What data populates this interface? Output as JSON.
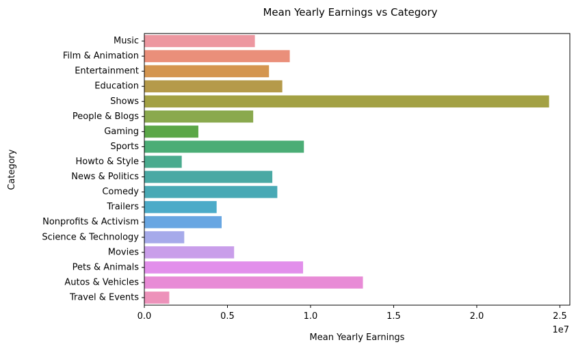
{
  "chart_data": {
    "type": "bar",
    "orientation": "horizontal",
    "title": "Mean Yearly Earnings vs Category",
    "xlabel": "Mean Yearly Earnings",
    "ylabel": "Category",
    "x_offset_text": "1e7",
    "xlim": [
      0,
      25600000
    ],
    "x_ticks": [
      {
        "value": 0,
        "label": "0.0"
      },
      {
        "value": 5000000,
        "label": "0.5"
      },
      {
        "value": 10000000,
        "label": "1.0"
      },
      {
        "value": 15000000,
        "label": "1.5"
      },
      {
        "value": 20000000,
        "label": "2.0"
      },
      {
        "value": 25000000,
        "label": "2.5"
      }
    ],
    "grid": false,
    "legend": "none",
    "categories": [
      "Music",
      "Film & Animation",
      "Entertainment",
      "Education",
      "Shows",
      "People & Blogs",
      "Gaming",
      "Sports",
      "Howto & Style",
      "News & Politics",
      "Comedy",
      "Trailers",
      "Nonprofits & Activism",
      "Science & Technology",
      "Movies",
      "Pets & Animals",
      "Autos & Vehicles",
      "Travel & Events"
    ],
    "values": [
      6650000,
      8750000,
      7500000,
      8300000,
      24350000,
      6550000,
      3250000,
      9600000,
      2250000,
      7700000,
      8000000,
      4350000,
      4650000,
      2400000,
      5400000,
      9550000,
      13150000,
      1500000
    ],
    "colors": [
      "#ed97a0",
      "#ea8f7a",
      "#d4954f",
      "#b59a4a",
      "#a3a144",
      "#8aa94e",
      "#5ba747",
      "#4bad76",
      "#4aab8e",
      "#4aa9a4",
      "#48a9b5",
      "#4cabc8",
      "#68a6e2",
      "#a6aaea",
      "#c99eea",
      "#e28feb",
      "#e88bd6",
      "#ed92ba"
    ]
  }
}
